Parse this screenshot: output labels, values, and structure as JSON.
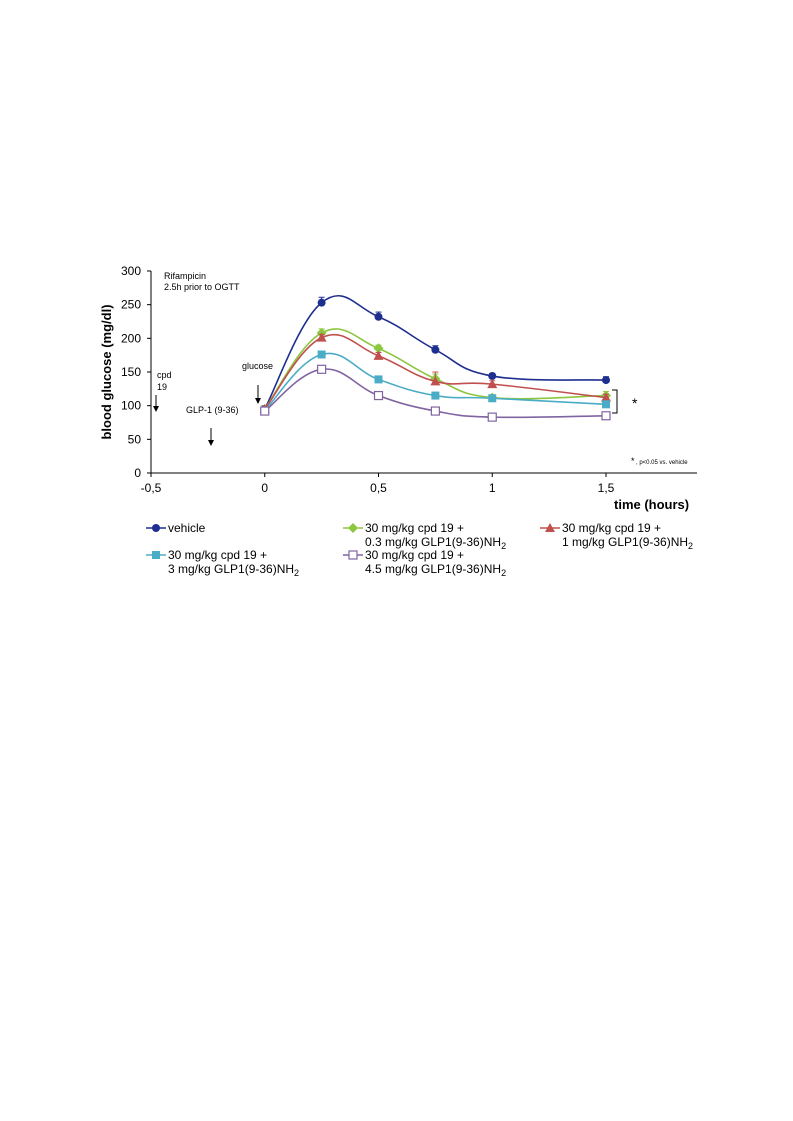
{
  "chart_data": {
    "type": "line",
    "xlabel": "time (hours)",
    "ylabel": "blood glucose (mg/dl)",
    "xlim": [
      -0.5,
      1.9
    ],
    "ylim": [
      0,
      300
    ],
    "x_ticks": [
      -0.5,
      0,
      0.5,
      1,
      1.5
    ],
    "x_tick_labels": [
      "-0,5",
      "0",
      "0,5",
      "1",
      "1,5"
    ],
    "y_ticks": [
      0,
      50,
      100,
      150,
      200,
      250,
      300
    ],
    "y_tick_labels": [
      "0",
      "50",
      "100",
      "150",
      "200",
      "250",
      "300"
    ],
    "grid": false,
    "legend": "bottom",
    "x": [
      0,
      0.25,
      0.5,
      0.75,
      1,
      1.5
    ],
    "series": [
      {
        "label_line1": "vehicle",
        "label_line2": "",
        "label_sub": "",
        "color": "#1f2f8f",
        "marker": "circle",
        "values": [
          95,
          253,
          232,
          183,
          144,
          138
        ],
        "errors": [
          5,
          8,
          7,
          6,
          4,
          5
        ]
      },
      {
        "label_line1": "30 mg/kg cpd 19 +",
        "label_line2": "0.3 mg/kg GLP1(9-36)NH",
        "label_sub": "2",
        "color": "#8dc63f",
        "marker": "diamond",
        "values": [
          95,
          208,
          185,
          140,
          112,
          115
        ],
        "errors": [
          4,
          6,
          5,
          7,
          4,
          6
        ]
      },
      {
        "label_line1": "30 mg/kg cpd 19 +",
        "label_line2": "1 mg/kg GLP1(9-36)NH",
        "label_sub": "2",
        "color": "#c0504d",
        "marker": "triangle",
        "values": [
          95,
          201,
          174,
          136,
          132,
          112
        ],
        "errors": [
          4,
          5,
          5,
          14,
          5,
          5
        ]
      },
      {
        "label_line1": "30 mg/kg cpd 19 +",
        "label_line2": "3 mg/kg GLP1(9-36)NH",
        "label_sub": "2",
        "color": "#4bacc6",
        "marker": "square",
        "values": [
          93,
          176,
          139,
          115,
          111,
          102
        ],
        "errors": [
          4,
          4,
          4,
          4,
          4,
          4
        ]
      },
      {
        "label_line1": "30 mg/kg cpd 19 +",
        "label_line2": "4.5 mg/kg GLP1(9-36)NH",
        "label_sub": "2",
        "color": "#8064a2",
        "marker": "open-square",
        "values": [
          92,
          154,
          115,
          92,
          83,
          85
        ],
        "errors": [
          4,
          5,
          5,
          4,
          4,
          4
        ]
      }
    ],
    "annotations": {
      "rifampicin_line1": "Rifampicin",
      "rifampicin_line2": "2.5h prior to OGTT",
      "cpd_line1": "cpd",
      "cpd_line2": "19",
      "glp1": "GLP-1 (9-36)",
      "glucose": "glucose",
      "significance_marker": "*",
      "footnote_marker": "*",
      "footnote_text": ", p<0.05  vs. vehicle"
    }
  }
}
